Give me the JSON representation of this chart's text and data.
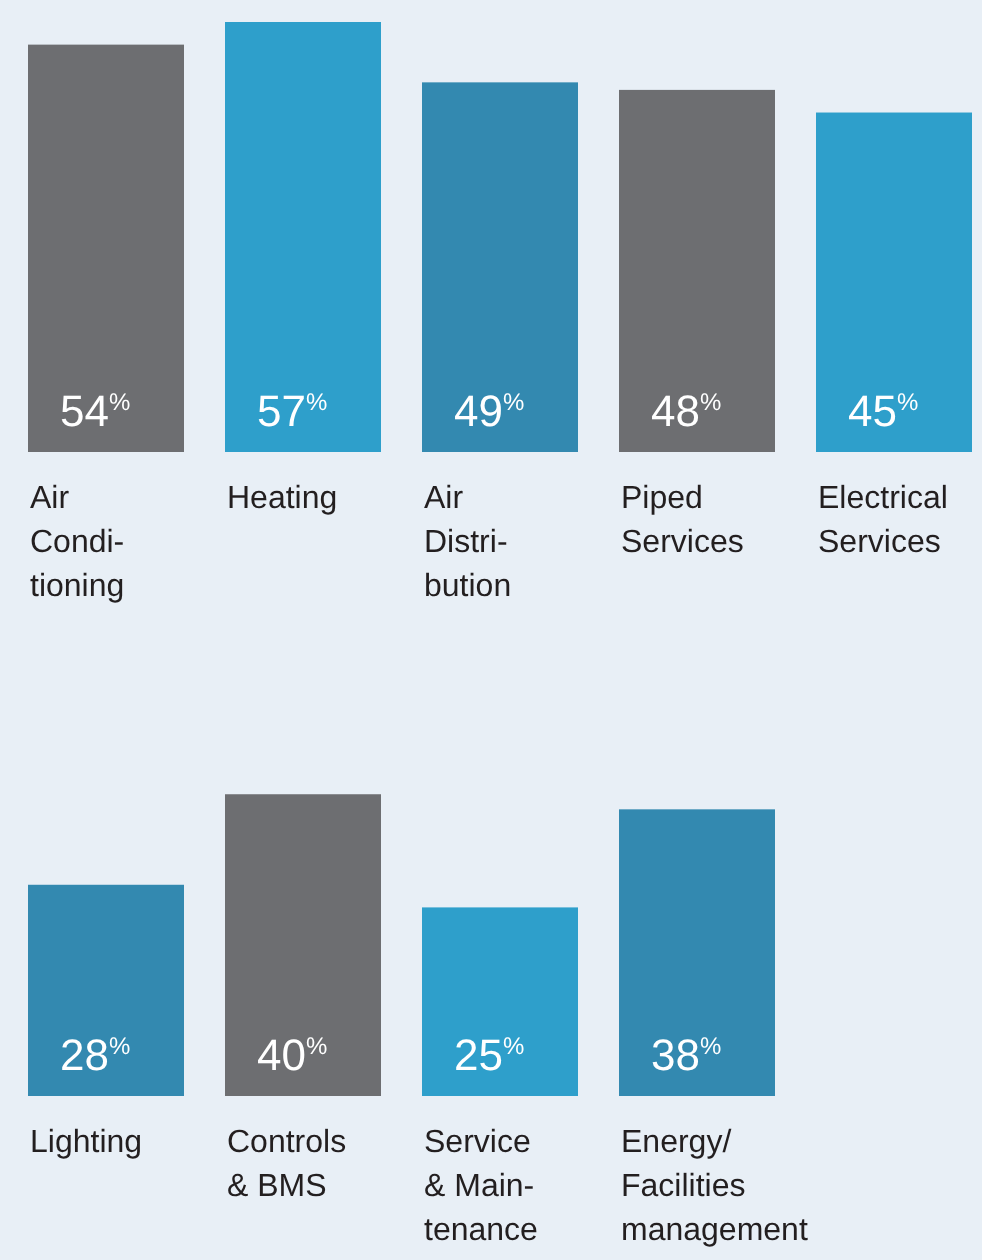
{
  "chart_data": [
    {
      "type": "bar",
      "categories": [
        "Air\nCondi-\ntioning",
        "Heating",
        "Air\nDistri-\nbution",
        "Piped\nServices",
        "Electrical\nServices"
      ],
      "values": [
        54,
        57,
        49,
        48,
        45
      ],
      "colors": [
        "#6d6e71",
        "#2e9fcb",
        "#3389b0",
        "#6d6e71",
        "#2e9fcb"
      ],
      "value_labels": [
        "54$^{%}$",
        "57$^{%}$",
        "49$^{%}$",
        "48$^{%}$",
        "45$^{%}$"
      ]
    },
    {
      "type": "bar",
      "categories": [
        "Lighting",
        "Controls\n& BMS",
        "Service\n& Main-\ntenance",
        "Energy/\nFacilities\nmanagement"
      ],
      "values": [
        28,
        40,
        25,
        38
      ],
      "colors": [
        "#3389b0",
        "#6d6e71",
        "#2e9fcb",
        "#3389b0"
      ],
      "value_labels": [
        "28$^{%}$",
        "40$^{%}$",
        "25$^{%}$",
        "38$^{%}$"
      ]
    }
  ]
}
